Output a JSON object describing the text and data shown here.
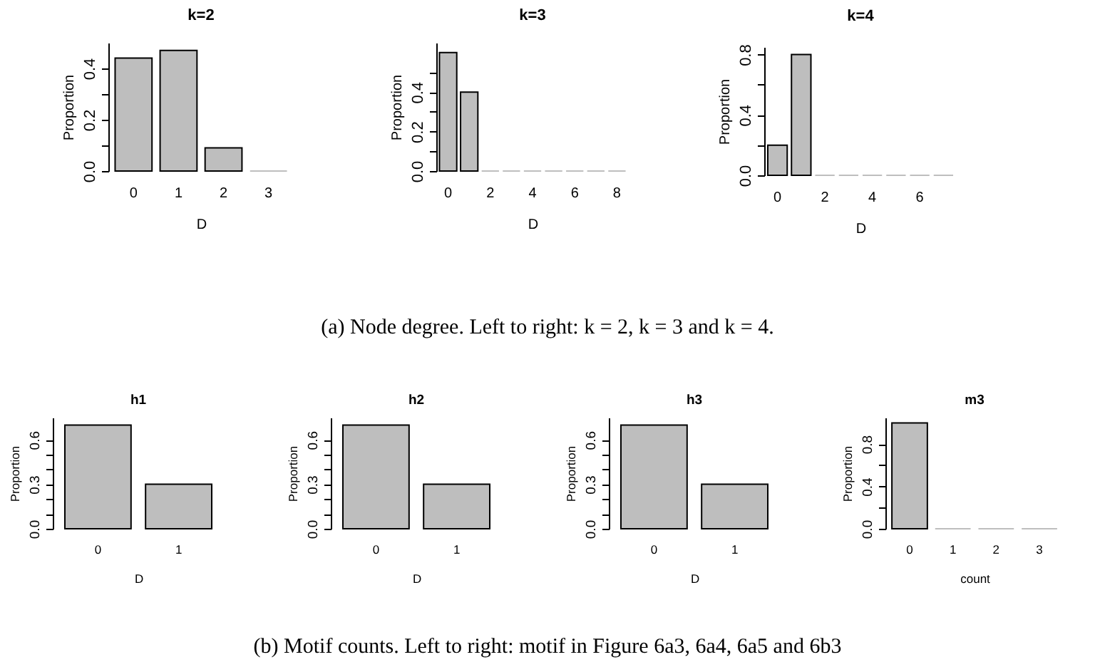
{
  "chart_data": [
    {
      "type": "bar",
      "title": "k=2",
      "xlabel": "D",
      "ylabel": "Proportion",
      "categories": [
        "0",
        "1",
        "2",
        "3"
      ],
      "values": [
        0.44,
        0.47,
        0.09,
        0
      ],
      "color": "#bebebe",
      "ylim": [
        0,
        0.5
      ],
      "yticks": [
        {
          "value": 0,
          "label": "0.0"
        },
        {
          "value": 0.1,
          "label": null
        },
        {
          "value": 0.2,
          "label": "0.2"
        },
        {
          "value": 0.3,
          "label": null
        },
        {
          "value": 0.4,
          "label": "0.4"
        }
      ]
    },
    {
      "type": "bar",
      "title": "k=3",
      "xlabel": "D",
      "ylabel": "Proportion",
      "categories": [
        "0",
        null,
        "2",
        null,
        "4",
        null,
        "6",
        null,
        "8"
      ],
      "values": [
        0.6,
        0.4,
        0,
        0,
        0,
        0,
        0,
        0,
        0
      ],
      "color": "#bebebe",
      "ylim": [
        0,
        0.65
      ],
      "yticks": [
        {
          "value": 0,
          "label": "0.0"
        },
        {
          "value": 0.1,
          "label": null
        },
        {
          "value": 0.2,
          "label": "0.2"
        },
        {
          "value": 0.3,
          "label": null
        },
        {
          "value": 0.4,
          "label": "0.4"
        },
        {
          "value": 0.5,
          "label": null
        }
      ]
    },
    {
      "type": "bar",
      "title": "k=4",
      "xlabel": "D",
      "ylabel": "Proportion",
      "categories": [
        "0",
        null,
        "2",
        null,
        "4",
        null,
        "6",
        null
      ],
      "values": [
        0.2,
        0.8,
        0,
        0,
        0,
        0,
        0,
        0
      ],
      "color": "#bebebe",
      "ylim": [
        0,
        0.85
      ],
      "yticks": [
        {
          "value": 0,
          "label": "0.0"
        },
        {
          "value": 0.2,
          "label": null
        },
        {
          "value": 0.4,
          "label": "0.4"
        },
        {
          "value": 0.6,
          "label": null
        },
        {
          "value": 0.8,
          "label": "0.8"
        }
      ],
      "annotations": [
        "(a) Node degree. Left to right: k = 2, k = 3 and k = 4."
      ]
    },
    {
      "type": "bar",
      "title": "h1",
      "xlabel": "D",
      "ylabel": "Proportion",
      "categories": [
        "0",
        "1"
      ],
      "values": [
        0.7,
        0.3
      ],
      "color": "#bebebe",
      "ylim": [
        0,
        0.75
      ],
      "yticks": [
        {
          "value": 0,
          "label": "0.0"
        },
        {
          "value": 0.1,
          "label": null
        },
        {
          "value": 0.2,
          "label": null
        },
        {
          "value": 0.3,
          "label": "0.3"
        },
        {
          "value": 0.4,
          "label": null
        },
        {
          "value": 0.5,
          "label": null
        },
        {
          "value": 0.6,
          "label": "0.6"
        }
      ]
    },
    {
      "type": "bar",
      "title": "h2",
      "xlabel": "D",
      "ylabel": "Proportion",
      "categories": [
        "0",
        "1"
      ],
      "values": [
        0.7,
        0.3
      ],
      "color": "#bebebe",
      "ylim": [
        0,
        0.75
      ],
      "yticks": [
        {
          "value": 0,
          "label": "0.0"
        },
        {
          "value": 0.1,
          "label": null
        },
        {
          "value": 0.2,
          "label": null
        },
        {
          "value": 0.3,
          "label": "0.3"
        },
        {
          "value": 0.4,
          "label": null
        },
        {
          "value": 0.5,
          "label": null
        },
        {
          "value": 0.6,
          "label": "0.6"
        }
      ]
    },
    {
      "type": "bar",
      "title": "h3",
      "xlabel": "D",
      "ylabel": "Proportion",
      "categories": [
        "0",
        "1"
      ],
      "values": [
        0.7,
        0.3
      ],
      "color": "#bebebe",
      "ylim": [
        0,
        0.75
      ],
      "yticks": [
        {
          "value": 0,
          "label": "0.0"
        },
        {
          "value": 0.1,
          "label": null
        },
        {
          "value": 0.2,
          "label": null
        },
        {
          "value": 0.3,
          "label": "0.3"
        },
        {
          "value": 0.4,
          "label": null
        },
        {
          "value": 0.5,
          "label": null
        },
        {
          "value": 0.6,
          "label": "0.6"
        }
      ]
    },
    {
      "type": "bar",
      "title": "m3",
      "xlabel": "count",
      "ylabel": "Proportion",
      "categories": [
        "0",
        "1",
        "2",
        "3"
      ],
      "values": [
        1.0,
        0,
        0,
        0
      ],
      "color": "#bebebe",
      "ylim": [
        0,
        1.05
      ],
      "yticks": [
        {
          "value": 0,
          "label": "0.0"
        },
        {
          "value": 0.2,
          "label": null
        },
        {
          "value": 0.4,
          "label": "0.4"
        },
        {
          "value": 0.6,
          "label": null
        },
        {
          "value": 0.8,
          "label": "0.8"
        }
      ],
      "annotations": [
        "(b) Motif counts. Left to right: motif in Figure 6a3, 6a4, 6a5 and 6b3"
      ]
    }
  ]
}
